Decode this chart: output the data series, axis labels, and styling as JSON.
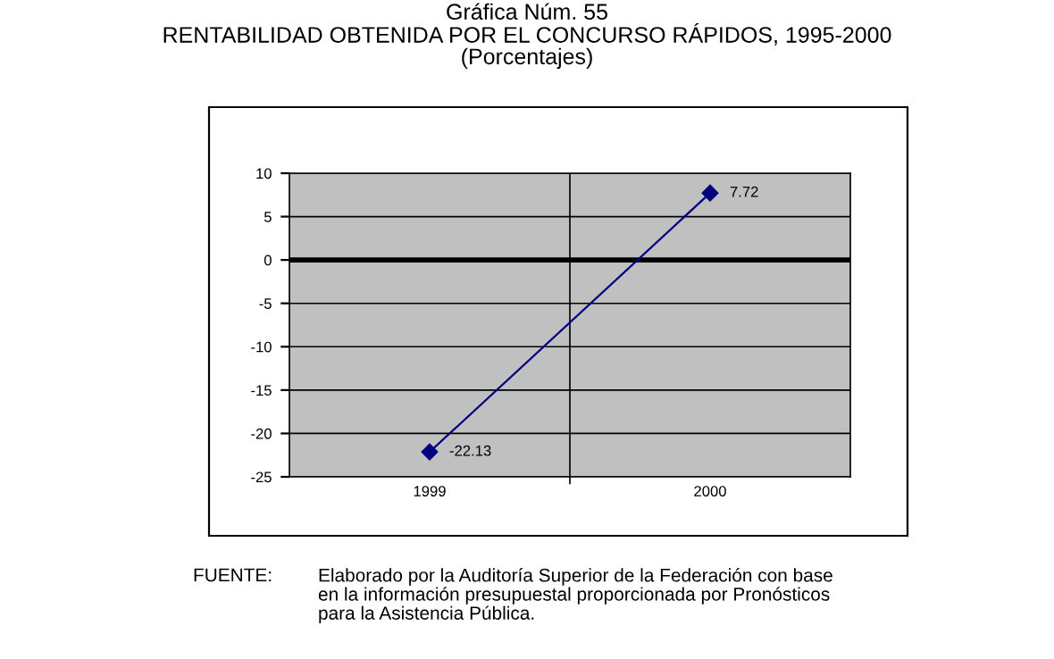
{
  "chart_data": {
    "type": "line",
    "title": "Gráfica Núm. 55\nRENTABILIDAD OBTENIDA POR EL CONCURSO RÁPIDOS, 1995-2000\n(Porcentajes)",
    "categories": [
      "1999",
      "2000"
    ],
    "series": [
      {
        "color": "#000080",
        "values": [
          -22.13,
          7.72
        ]
      }
    ],
    "ylim": [
      -25,
      10
    ],
    "yticks": [
      -25,
      -20,
      -15,
      -10,
      -5,
      0,
      5,
      10
    ],
    "grid": true,
    "marker": "diamond",
    "line_style": "solid",
    "data_labels": true,
    "ref_lines": [
      {
        "axis": "y",
        "value": 0,
        "color": "#000000"
      }
    ],
    "annotations": [
      "FUENTE:",
      "Elaborado por la Auditoría Superior de la Federación con base\nen la información presupuestal proporcionada por Pronósticos\npara la Asistencia Pública."
    ]
  }
}
